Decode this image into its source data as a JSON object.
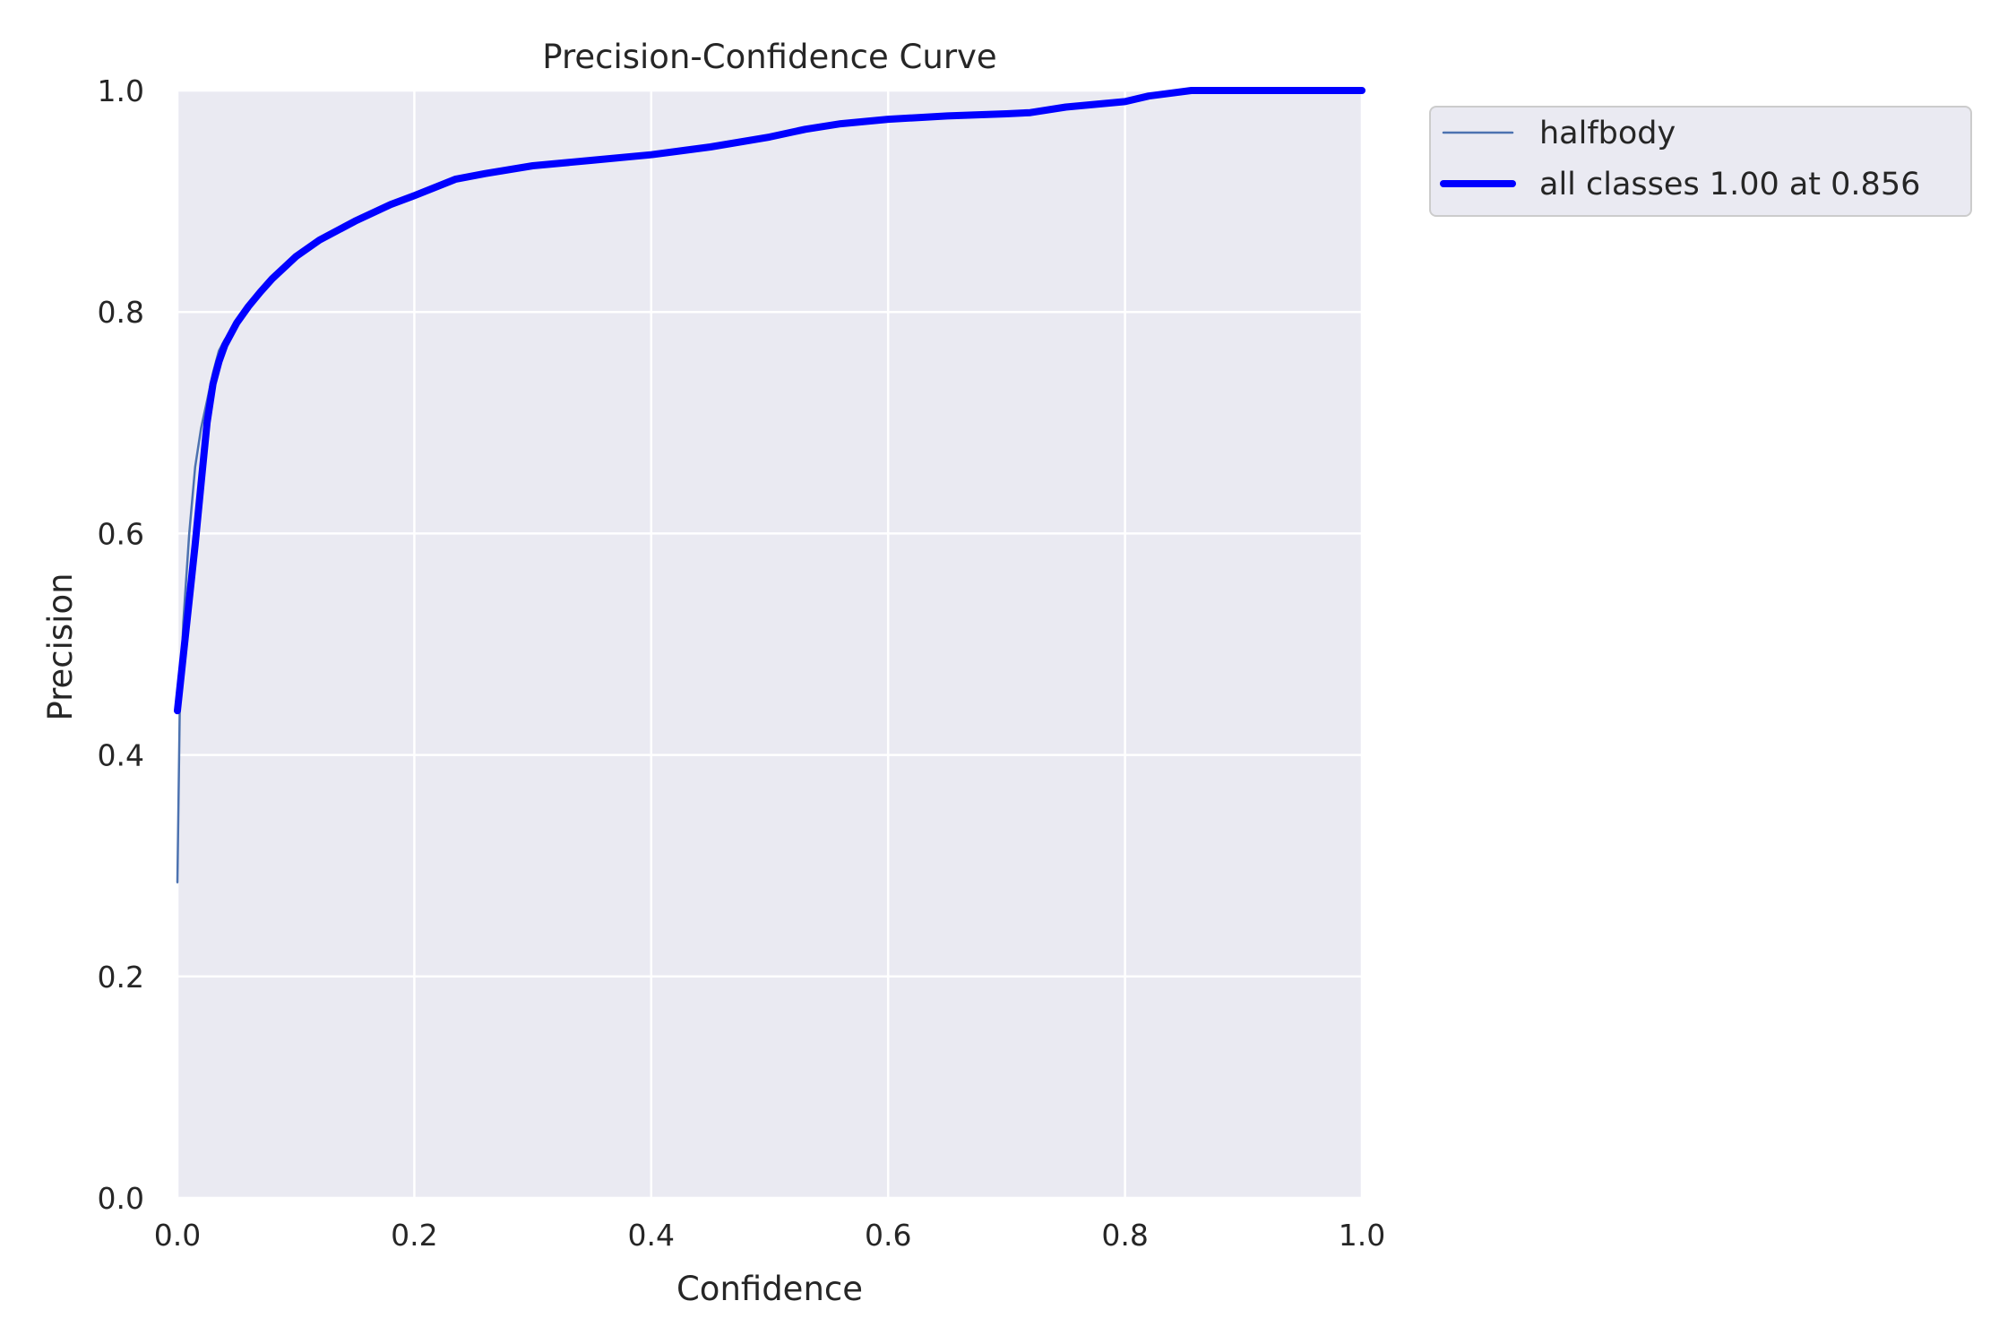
{
  "chart_data": {
    "type": "line",
    "title": "Precision-Confidence Curve",
    "xlabel": "Confidence",
    "ylabel": "Precision",
    "xlim": [
      0,
      1
    ],
    "ylim": [
      0,
      1
    ],
    "xticks": [
      "0.0",
      "0.2",
      "0.4",
      "0.6",
      "0.8",
      "1.0"
    ],
    "yticks": [
      "0.0",
      "0.2",
      "0.4",
      "0.6",
      "0.8",
      "1.0"
    ],
    "grid": true,
    "legend_position": "outside-top-right",
    "colors": {
      "background": "#eaeaf2",
      "grid": "#ffffff",
      "halfbody": "#4c72b0",
      "all_classes": "#0000ff"
    },
    "series": [
      {
        "name": "halfbody",
        "x": [
          0.0,
          0.002,
          0.005,
          0.01,
          0.015,
          0.02,
          0.025,
          0.03,
          0.035,
          0.04,
          0.05,
          0.06,
          0.07,
          0.08,
          0.1,
          0.12,
          0.15,
          0.18,
          0.2,
          0.235,
          0.26,
          0.3,
          0.35,
          0.4,
          0.45,
          0.5,
          0.53,
          0.56,
          0.6,
          0.65,
          0.7,
          0.72,
          0.75,
          0.8,
          0.82,
          0.856,
          0.9,
          0.95,
          1.0
        ],
        "y": [
          0.285,
          0.44,
          0.52,
          0.6,
          0.66,
          0.695,
          0.72,
          0.745,
          0.765,
          0.775,
          0.79,
          0.805,
          0.818,
          0.83,
          0.85,
          0.865,
          0.882,
          0.897,
          0.905,
          0.92,
          0.925,
          0.932,
          0.937,
          0.942,
          0.949,
          0.958,
          0.965,
          0.97,
          0.974,
          0.977,
          0.979,
          0.98,
          0.985,
          0.99,
          0.995,
          1.0,
          1.0,
          1.0,
          1.0
        ]
      },
      {
        "name": "all classes 1.00 at 0.856",
        "x": [
          0.0,
          0.005,
          0.01,
          0.015,
          0.02,
          0.025,
          0.03,
          0.035,
          0.04,
          0.05,
          0.06,
          0.07,
          0.08,
          0.1,
          0.12,
          0.15,
          0.18,
          0.2,
          0.235,
          0.26,
          0.3,
          0.35,
          0.4,
          0.45,
          0.5,
          0.53,
          0.56,
          0.6,
          0.65,
          0.7,
          0.72,
          0.75,
          0.8,
          0.82,
          0.856,
          0.9,
          0.95,
          1.0
        ],
        "y": [
          0.44,
          0.49,
          0.54,
          0.59,
          0.645,
          0.7,
          0.735,
          0.755,
          0.77,
          0.79,
          0.805,
          0.818,
          0.83,
          0.85,
          0.865,
          0.882,
          0.897,
          0.905,
          0.92,
          0.925,
          0.932,
          0.937,
          0.942,
          0.949,
          0.958,
          0.965,
          0.97,
          0.974,
          0.977,
          0.979,
          0.98,
          0.985,
          0.99,
          0.995,
          1.0,
          1.0,
          1.0,
          1.0
        ]
      }
    ]
  }
}
